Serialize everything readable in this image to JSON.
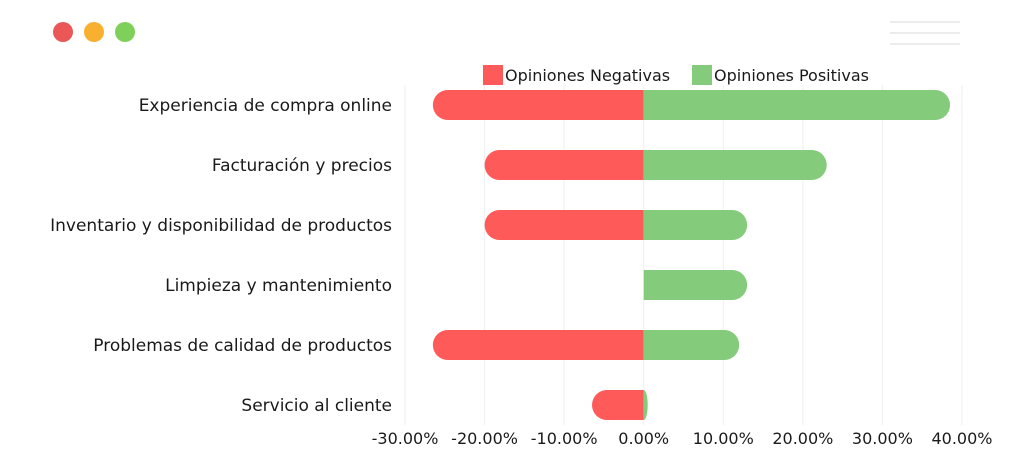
{
  "window": {
    "dots": [
      {
        "name": "close-dot",
        "color": "#eb5757"
      },
      {
        "name": "minimize-dot",
        "color": "#f7b030"
      },
      {
        "name": "zoom-dot",
        "color": "#7ed05a"
      }
    ],
    "menu_icon": "hamburger-icon"
  },
  "colors": {
    "negative": "#ff5a5a",
    "positive": "#84cc7c",
    "grid": "#efefef"
  },
  "chart_data": {
    "type": "bar",
    "orientation": "horizontal",
    "stacked": "diverging",
    "categories": [
      "Experiencia de compra online",
      "Facturación y precios",
      "Inventario y disponibilidad de productos",
      "Limpieza y mantenimiento",
      "Problemas de calidad de productos",
      "Servicio al cliente"
    ],
    "series": [
      {
        "name": "Opiniones Negativas",
        "color": "#ff5a5a",
        "values": [
          -26.5,
          -20,
          -20,
          0,
          -26.5,
          -6.5
        ]
      },
      {
        "name": "Opiniones Positivas",
        "color": "#84cc7c",
        "values": [
          38.5,
          23,
          13,
          13,
          12,
          0.5
        ]
      }
    ],
    "xlim": [
      -30,
      40
    ],
    "xticks": [
      "-30.00%",
      "-20.00%",
      "-10.00%",
      "0.00%",
      "10.00%",
      "20.00%",
      "30.00%",
      "40.00%"
    ],
    "legend_position": "top",
    "grid": true
  }
}
